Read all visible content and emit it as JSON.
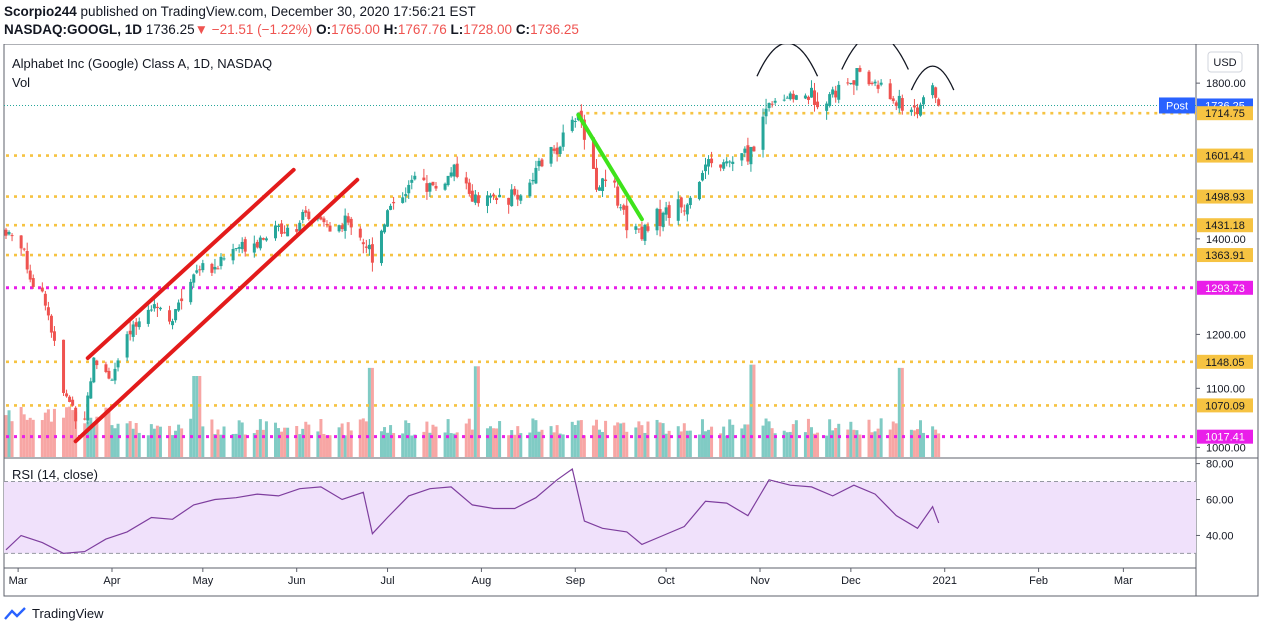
{
  "header": {
    "user": "Scorpio244",
    "published_text": "published on TradingView.com, December 30, 2020 17:56:21 EST",
    "symbol": "NASDAQ:GOOGL, 1D",
    "last": "1736.25",
    "change_arrow": "▼",
    "change": "−21.51 (−1.22%)",
    "o_label": "O:",
    "o": "1765.00",
    "h_label": "H:",
    "h": "1767.76",
    "l_label": "L:",
    "l": "1728.00",
    "c_label": "C:",
    "c": "1736.25"
  },
  "legend": {
    "title": "Alphabet Inc (Google) Class A, 1D, NASDAQ",
    "vol": "Vol",
    "rsi": "RSI (14, close)"
  },
  "currency_button": "USD",
  "footer": {
    "brand": "TradingView"
  },
  "colors": {
    "up": "#26a69a",
    "down": "#ef5350",
    "vol_up": "#80cbc4",
    "vol_down": "#f7a6a4",
    "level_yellow": "#f6c342",
    "level_magenta": "#e91ee9",
    "channel": "#e31b1b",
    "drop_line": "#3ee31b",
    "rsi_line": "#7e3e9e",
    "rsi_band": "#f0e1fb"
  },
  "chart_data": [
    {
      "type": "candlestick",
      "x_ticks": [
        "Mar",
        "Apr",
        "May",
        "Jun",
        "Jul",
        "Aug",
        "Sep",
        "Oct",
        "Nov",
        "Dec",
        "2021",
        "Feb",
        "Mar"
      ],
      "y_ticks": [
        1000,
        1100,
        1200,
        1400,
        1800
      ],
      "price_labels": [
        {
          "value": 1736.25,
          "label": "1736.25",
          "tag": "Post",
          "kind": "last"
        },
        {
          "value": 1714.75,
          "label": "1714.75",
          "kind": "yellow"
        },
        {
          "value": 1601.41,
          "label": "1601.41",
          "kind": "yellow"
        },
        {
          "value": 1498.93,
          "label": "1498.93",
          "kind": "yellow"
        },
        {
          "value": 1431.18,
          "label": "1431.18",
          "kind": "yellow"
        },
        {
          "value": 1363.91,
          "label": "1363.91",
          "kind": "yellow"
        },
        {
          "value": 1293.73,
          "label": "1293.73",
          "kind": "magenta"
        },
        {
          "value": 1148.05,
          "label": "1148.05",
          "kind": "yellow"
        },
        {
          "value": 1070.09,
          "label": "1070.09",
          "kind": "yellow"
        },
        {
          "value": 1017.41,
          "label": "1017.41",
          "kind": "magenta"
        }
      ],
      "x_range": [
        "2020-02-26",
        "2021-03-23"
      ],
      "price_range": [
        983,
        1905
      ],
      "log_scale": true,
      "grid": false,
      "anchors": [
        [
          "2020-02-26",
          1420
        ],
        [
          "2020-03-02",
          1390
        ],
        [
          "2020-03-06",
          1300
        ],
        [
          "2020-03-10",
          1270
        ],
        [
          "2020-03-16",
          1090
        ],
        [
          "2020-03-20",
          1060
        ],
        [
          "2020-03-23",
          1055
        ],
        [
          "2020-03-26",
          1150
        ],
        [
          "2020-04-01",
          1120
        ],
        [
          "2020-04-06",
          1190
        ],
        [
          "2020-04-09",
          1215
        ],
        [
          "2020-04-14",
          1270
        ],
        [
          "2020-04-21",
          1230
        ],
        [
          "2020-04-29",
          1340
        ],
        [
          "2020-05-05",
          1340
        ],
        [
          "2020-05-12",
          1380
        ],
        [
          "2020-05-19",
          1400
        ],
        [
          "2020-05-29",
          1430
        ],
        [
          "2020-06-08",
          1450
        ],
        [
          "2020-06-12",
          1420
        ],
        [
          "2020-06-19",
          1440
        ],
        [
          "2020-06-26",
          1365
        ],
        [
          "2020-07-02",
          1480
        ],
        [
          "2020-07-10",
          1540
        ],
        [
          "2020-07-17",
          1520
        ],
        [
          "2020-07-23",
          1560
        ],
        [
          "2020-07-31",
          1480
        ],
        [
          "2020-08-07",
          1495
        ],
        [
          "2020-08-14",
          1505
        ],
        [
          "2020-08-21",
          1580
        ],
        [
          "2020-08-28",
          1640
        ],
        [
          "2020-09-02",
          1720
        ],
        [
          "2020-09-08",
          1530
        ],
        [
          "2020-09-14",
          1520
        ],
        [
          "2020-09-18",
          1440
        ],
        [
          "2020-09-23",
          1420
        ],
        [
          "2020-09-30",
          1460
        ],
        [
          "2020-10-07",
          1475
        ],
        [
          "2020-10-14",
          1570
        ],
        [
          "2020-10-21",
          1580
        ],
        [
          "2020-10-27",
          1600
        ],
        [
          "2020-10-30",
          1620
        ],
        [
          "2020-11-04",
          1750
        ],
        [
          "2020-11-10",
          1760
        ],
        [
          "2020-11-18",
          1760
        ],
        [
          "2020-11-25",
          1770
        ],
        [
          "2020-12-02",
          1820
        ],
        [
          "2020-12-09",
          1800
        ],
        [
          "2020-12-14",
          1760
        ],
        [
          "2020-12-18",
          1730
        ],
        [
          "2020-12-23",
          1730
        ],
        [
          "2020-12-28",
          1775
        ],
        [
          "2020-12-30",
          1736.25
        ]
      ],
      "volume_spikes": [
        [
          "2020-06-26",
          5.5
        ],
        [
          "2020-07-31",
          5.6
        ],
        [
          "2020-10-30",
          5.7
        ],
        [
          "2020-12-18",
          5.5
        ],
        [
          "2020-04-29",
          5.0
        ]
      ],
      "levels": [
        {
          "value": 1714.75,
          "from": "2020-09-02",
          "kind": "yellow"
        },
        {
          "value": 1601.41,
          "from": "2020-02-26",
          "kind": "yellow"
        },
        {
          "value": 1498.93,
          "from": "2020-02-26",
          "kind": "yellow"
        },
        {
          "value": 1431.18,
          "from": "2020-02-26",
          "kind": "yellow"
        },
        {
          "value": 1363.91,
          "from": "2020-02-26",
          "kind": "yellow"
        },
        {
          "value": 1293.73,
          "from": "2020-02-26",
          "kind": "magenta"
        },
        {
          "value": 1148.05,
          "from": "2020-02-26",
          "kind": "yellow"
        },
        {
          "value": 1070.09,
          "from": "2020-02-26",
          "kind": "yellow"
        },
        {
          "value": 1017.41,
          "from": "2020-02-26",
          "kind": "magenta"
        }
      ],
      "trendlines": [
        {
          "kind": "channel",
          "from": [
            "2020-03-24",
            1155
          ],
          "to": [
            "2020-05-31",
            1565
          ]
        },
        {
          "kind": "channel",
          "from": [
            "2020-03-20",
            1010
          ],
          "to": [
            "2020-06-21",
            1540
          ]
        },
        {
          "kind": "drop",
          "from": [
            "2020-09-02",
            1710
          ],
          "to": [
            "2020-09-23",
            1445
          ]
        }
      ],
      "arcs": [
        {
          "from": "2020-10-31",
          "to": "2020-11-20",
          "base": 1820,
          "peak": 1920
        },
        {
          "from": "2020-11-28",
          "to": "2020-12-20",
          "base": 1840,
          "peak": 1950
        },
        {
          "from": "2020-12-21",
          "to": "2021-01-04",
          "base": 1780,
          "peak": 1850
        }
      ]
    },
    {
      "type": "line",
      "title": "RSI (14, close)",
      "y_ticks": [
        40,
        60,
        80
      ],
      "ylim": [
        23,
        82
      ],
      "band": [
        30,
        70
      ],
      "points": [
        [
          "2020-02-26",
          32
        ],
        [
          "2020-03-02",
          40
        ],
        [
          "2020-03-09",
          36
        ],
        [
          "2020-03-16",
          30
        ],
        [
          "2020-03-23",
          31
        ],
        [
          "2020-03-30",
          38
        ],
        [
          "2020-04-06",
          42
        ],
        [
          "2020-04-14",
          50
        ],
        [
          "2020-04-21",
          49
        ],
        [
          "2020-04-28",
          57
        ],
        [
          "2020-05-05",
          60
        ],
        [
          "2020-05-12",
          61
        ],
        [
          "2020-05-19",
          63
        ],
        [
          "2020-05-26",
          62
        ],
        [
          "2020-06-02",
          66
        ],
        [
          "2020-06-09",
          67
        ],
        [
          "2020-06-16",
          60
        ],
        [
          "2020-06-23",
          64
        ],
        [
          "2020-06-26",
          41
        ],
        [
          "2020-07-01",
          50
        ],
        [
          "2020-07-08",
          62
        ],
        [
          "2020-07-15",
          66
        ],
        [
          "2020-07-22",
          67
        ],
        [
          "2020-07-29",
          57
        ],
        [
          "2020-08-05",
          55
        ],
        [
          "2020-08-12",
          55
        ],
        [
          "2020-08-19",
          61
        ],
        [
          "2020-08-26",
          71
        ],
        [
          "2020-08-31",
          77
        ],
        [
          "2020-09-04",
          48
        ],
        [
          "2020-09-10",
          44
        ],
        [
          "2020-09-18",
          42
        ],
        [
          "2020-09-23",
          35
        ],
        [
          "2020-09-30",
          40
        ],
        [
          "2020-10-07",
          45
        ],
        [
          "2020-10-14",
          59
        ],
        [
          "2020-10-21",
          58
        ],
        [
          "2020-10-28",
          51
        ],
        [
          "2020-11-04",
          71
        ],
        [
          "2020-11-11",
          68
        ],
        [
          "2020-11-18",
          67
        ],
        [
          "2020-11-25",
          62
        ],
        [
          "2020-12-02",
          68
        ],
        [
          "2020-12-09",
          63
        ],
        [
          "2020-12-16",
          51
        ],
        [
          "2020-12-23",
          44
        ],
        [
          "2020-12-28",
          56
        ],
        [
          "2020-12-30",
          47
        ]
      ]
    }
  ]
}
